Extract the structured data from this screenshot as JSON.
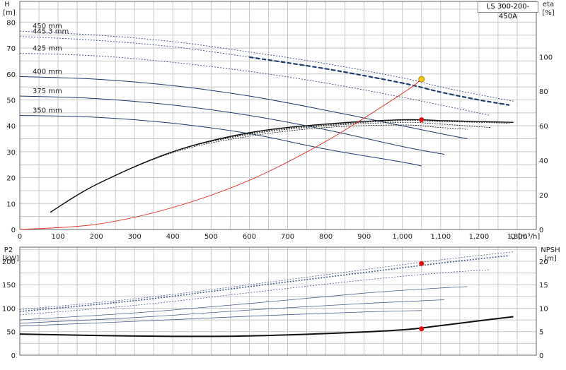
{
  "pump_label": "LS 300-200-450A",
  "top": {
    "y_left_title": "H",
    "y_left_unit": "[m]",
    "y_right_title": "eta",
    "y_right_unit": "[%]",
    "x_label": "Q",
    "x_unit": "[m³/h]",
    "x_ticks": [
      "0",
      "100",
      "200",
      "300",
      "400",
      "500",
      "600",
      "700",
      "800",
      "900",
      "1,000",
      "1,100",
      "1,200",
      "1,300"
    ],
    "y_left_ticks": [
      "0",
      "10",
      "20",
      "30",
      "40",
      "50",
      "60",
      "70",
      "80"
    ],
    "y_right_ticks": [
      "0",
      "20",
      "40",
      "60",
      "80",
      "100"
    ]
  },
  "bottom": {
    "y_left_title": "P2",
    "y_left_unit": "[kW]",
    "y_right_title": "NPSH",
    "y_right_unit": "[m]",
    "y_left_ticks": [
      "0",
      "50",
      "100",
      "150",
      "200"
    ],
    "y_right_ticks": [
      "0",
      "5",
      "10",
      "15",
      "20"
    ]
  },
  "chart_data": [
    {
      "type": "line",
      "panel": "head-efficiency",
      "xlim": [
        0,
        1350
      ],
      "ylim_left": [
        0,
        88
      ],
      "ylim_right": [
        0,
        132
      ],
      "head_curves": [
        {
          "label": "450 mm",
          "x": [
            0,
            200,
            400,
            600,
            800,
            1000,
            1100,
            1200,
            1290
          ],
          "y": [
            76.5,
            75,
            72.5,
            68.5,
            64,
            58.5,
            55,
            52,
            49.5
          ]
        },
        {
          "label": "445.3 mm",
          "x": [
            0,
            200,
            400,
            600,
            800,
            1000,
            1100,
            1200,
            1280
          ],
          "y": [
            74.5,
            73,
            70.5,
            66.5,
            62,
            56.5,
            53,
            50,
            48
          ]
        },
        {
          "label": "425 mm",
          "x": [
            0,
            200,
            400,
            600,
            800,
            1000,
            1100,
            1230
          ],
          "y": [
            68,
            67,
            64.5,
            61,
            56.5,
            51,
            48,
            44
          ]
        },
        {
          "label": "400 mm",
          "x": [
            0,
            200,
            400,
            600,
            800,
            1000,
            1100,
            1170
          ],
          "y": [
            59,
            58,
            55.5,
            51.5,
            46,
            40,
            37,
            35
          ]
        },
        {
          "label": "375 mm",
          "x": [
            0,
            200,
            400,
            600,
            800,
            1000,
            1110
          ],
          "y": [
            51.5,
            50.5,
            48,
            44,
            38.5,
            32,
            29
          ]
        },
        {
          "label": "350 mm",
          "x": [
            0,
            200,
            400,
            600,
            800,
            1000,
            1050
          ],
          "y": [
            44,
            43.3,
            41,
            37,
            31,
            26,
            24.5
          ]
        }
      ],
      "efficiency_curves": [
        {
          "x": [
            80,
            200,
            400,
            600,
            800,
            1000,
            1100,
            1200,
            1290
          ],
          "y": [
            10,
            26,
            45,
            56,
            61,
            63.5,
            63,
            62.5,
            62
          ]
        },
        {
          "x": [
            80,
            200,
            400,
            600,
            800,
            1000,
            1100,
            1200,
            1280
          ],
          "y": [
            10,
            26,
            45,
            55.5,
            60.5,
            63,
            62.5,
            62,
            61.5
          ]
        },
        {
          "x": [
            80,
            200,
            400,
            600,
            800,
            1000,
            1100,
            1230
          ],
          "y": [
            10,
            26,
            45,
            55,
            60,
            62,
            61,
            59
          ]
        },
        {
          "x": [
            80,
            200,
            400,
            600,
            800,
            1000,
            1100,
            1170
          ],
          "y": [
            10,
            26,
            44.5,
            54,
            59,
            60.5,
            59,
            58
          ]
        }
      ],
      "system_curve": {
        "x": [
          0,
          200,
          400,
          600,
          800,
          1000,
          1050
        ],
        "y": [
          0,
          2,
          8.5,
          19,
          34,
          52.5,
          58
        ]
      },
      "duty_point_head": {
        "x": 1050,
        "y": 58
      },
      "duty_point_eta": {
        "x": 1050,
        "y": 63.5
      }
    },
    {
      "type": "line",
      "panel": "power-npsh",
      "xlim": [
        0,
        1350
      ],
      "ylim_left": [
        0,
        230
      ],
      "ylim_right": [
        0,
        23
      ],
      "power_curves": [
        {
          "x": [
            0,
            300,
            600,
            900,
            1100,
            1290
          ],
          "y": [
            97,
            120,
            150,
            182,
            203,
            220
          ]
        },
        {
          "x": [
            0,
            300,
            600,
            900,
            1100,
            1280
          ],
          "y": [
            93,
            116,
            146,
            176,
            196,
            212
          ]
        },
        {
          "x": [
            0,
            300,
            600,
            900,
            1100,
            1230
          ],
          "y": [
            86,
            106,
            133,
            160,
            175,
            182
          ]
        },
        {
          "x": [
            0,
            300,
            600,
            900,
            1100,
            1170
          ],
          "y": [
            75,
            90,
            110,
            132,
            143,
            146
          ]
        },
        {
          "x": [
            0,
            300,
            600,
            900,
            1110
          ],
          "y": [
            68,
            80,
            96,
            110,
            118
          ]
        },
        {
          "x": [
            0,
            300,
            600,
            900,
            1050
          ],
          "y": [
            62,
            72,
            83,
            92,
            95
          ]
        }
      ],
      "npsh_curve": {
        "x": [
          0,
          200,
          400,
          600,
          800,
          1000,
          1100,
          1200,
          1290
        ],
        "y": [
          4.5,
          4.2,
          4.0,
          4.1,
          4.6,
          5.4,
          6.3,
          7.3,
          8.2
        ]
      },
      "duty_point_power": {
        "x": 1050,
        "y": 195
      },
      "duty_point_npsh": {
        "x": 1050,
        "y": 5.6
      }
    }
  ]
}
